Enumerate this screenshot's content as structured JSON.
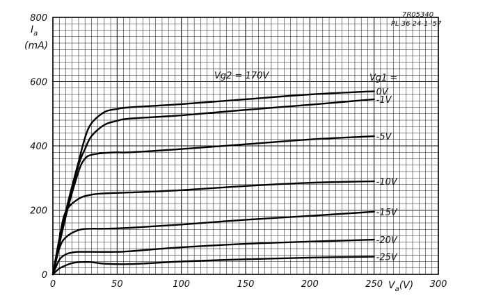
{
  "reference": {
    "code": "7R05340",
    "tube_date": "PL 36  24-1-'57"
  },
  "chart_data": {
    "type": "line",
    "title": "",
    "ylabel_lines": [
      "I",
      "a",
      "(mA)"
    ],
    "xlabel_parts": [
      "V",
      "a",
      "(V)"
    ],
    "xlim": [
      0,
      300
    ],
    "ylim": [
      0,
      800
    ],
    "x_ticks": [
      "0",
      "50",
      "100",
      "150",
      "200",
      "250",
      "300"
    ],
    "y_ticks": [
      "0",
      "200",
      "400",
      "600",
      "800"
    ],
    "grid": true,
    "parameter_label": "Vg2 = 170V",
    "legend_header": "Vg1 =",
    "series": [
      {
        "name": "0V",
        "x": [
          0,
          10,
          20,
          25,
          30,
          40,
          50,
          60,
          100,
          150,
          200,
          250
        ],
        "y": [
          0,
          195,
          350,
          425,
          470,
          505,
          515,
          520,
          530,
          545,
          560,
          570
        ]
      },
      {
        "name": "-1V",
        "x": [
          0,
          10,
          20,
          25,
          30,
          40,
          50,
          60,
          100,
          150,
          200,
          250
        ],
        "y": [
          0,
          190,
          340,
          390,
          430,
          465,
          478,
          485,
          495,
          512,
          528,
          545
        ]
      },
      {
        "name": "-5V",
        "x": [
          0,
          10,
          20,
          25,
          30,
          40,
          50,
          60,
          100,
          150,
          200,
          250
        ],
        "y": [
          0,
          180,
          320,
          360,
          372,
          378,
          380,
          380,
          390,
          405,
          420,
          430
        ]
      },
      {
        "name": "-10V",
        "x": [
          0,
          5,
          10,
          20,
          30,
          40,
          60,
          100,
          150,
          200,
          250
        ],
        "y": [
          0,
          110,
          195,
          235,
          248,
          252,
          255,
          262,
          275,
          285,
          290
        ]
      },
      {
        "name": "-15V",
        "x": [
          0,
          5,
          10,
          20,
          30,
          40,
          60,
          100,
          150,
          200,
          250
        ],
        "y": [
          0,
          80,
          115,
          138,
          142,
          142,
          145,
          155,
          170,
          182,
          195
        ]
      },
      {
        "name": "-20V",
        "x": [
          0,
          5,
          10,
          15,
          20,
          30,
          50,
          60,
          100,
          150,
          200,
          250
        ],
        "y": [
          0,
          45,
          62,
          68,
          70,
          70,
          70,
          72,
          84,
          95,
          102,
          108
        ]
      },
      {
        "name": "-25V",
        "x": [
          0,
          5,
          10,
          15,
          20,
          30,
          40,
          60,
          100,
          150,
          200,
          250
        ],
        "y": [
          0,
          18,
          28,
          35,
          38,
          38,
          33,
          32,
          40,
          47,
          52,
          55
        ]
      }
    ]
  }
}
